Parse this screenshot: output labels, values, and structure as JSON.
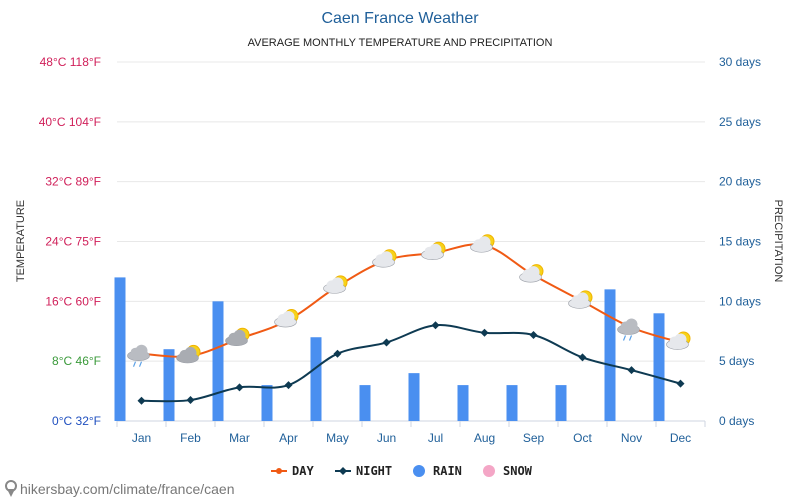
{
  "chart_data": {
    "type": "line",
    "title": "Caen France Weather",
    "subtitle": "AVERAGE MONTHLY TEMPERATURE AND PRECIPITATION",
    "ylabel_left": "TEMPERATURE",
    "ylabel_right": "PRECIPITATION",
    "categories": [
      "Jan",
      "Feb",
      "Mar",
      "Apr",
      "May",
      "Jun",
      "Jul",
      "Aug",
      "Sep",
      "Oct",
      "Nov",
      "Dec"
    ],
    "left_axis": {
      "ylim": [
        0,
        48
      ],
      "ticks": [
        {
          "value": 0,
          "label": "0°C 32°F",
          "color": "#1f4fbf"
        },
        {
          "value": 8,
          "label": "8°C 46°F",
          "color": "#3a9a3a"
        },
        {
          "value": 16,
          "label": "16°C 60°F",
          "color": "#d0205a"
        },
        {
          "value": 24,
          "label": "24°C 75°F",
          "color": "#d0205a"
        },
        {
          "value": 32,
          "label": "32°C 89°F",
          "color": "#d0205a"
        },
        {
          "value": 40,
          "label": "40°C 104°F",
          "color": "#d0205a"
        },
        {
          "value": 48,
          "label": "48°C 118°F",
          "color": "#d0205a"
        }
      ]
    },
    "right_axis": {
      "ylim": [
        0,
        30
      ],
      "ticks": [
        {
          "value": 0,
          "label": "0 days"
        },
        {
          "value": 5,
          "label": "5 days"
        },
        {
          "value": 10,
          "label": "10 days"
        },
        {
          "value": 15,
          "label": "15 days"
        },
        {
          "value": 20,
          "label": "20 days"
        },
        {
          "value": 25,
          "label": "25 days"
        },
        {
          "value": 30,
          "label": "30 days"
        }
      ]
    },
    "series": [
      {
        "name": "DAY",
        "type": "line",
        "axis": "left",
        "color": "#f05a14",
        "values": [
          9.0,
          8.7,
          11.0,
          13.5,
          18.0,
          21.5,
          22.5,
          23.5,
          19.5,
          16.0,
          12.5,
          10.5
        ]
      },
      {
        "name": "NIGHT",
        "type": "line",
        "axis": "left",
        "color": "#0e3a52",
        "values": [
          2.7,
          2.8,
          4.5,
          4.8,
          9.0,
          10.5,
          12.8,
          11.8,
          11.5,
          8.5,
          6.8,
          5.0
        ]
      },
      {
        "name": "RAIN",
        "type": "bar",
        "axis": "right",
        "color": "#4a8ff0",
        "values": [
          12,
          6,
          10,
          3,
          7,
          3,
          4,
          3,
          3,
          3,
          11,
          9
        ]
      },
      {
        "name": "SNOW",
        "type": "bar",
        "axis": "right",
        "color": "#f4a6c6",
        "values": [
          0,
          0,
          0,
          0,
          0,
          0,
          0,
          0,
          0,
          0,
          0,
          0
        ]
      }
    ],
    "weather_icons": [
      "rain-cloud-icon",
      "partly-cloudy-icon",
      "partly-cloudy-icon",
      "partly-sunny-icon",
      "partly-sunny-icon",
      "partly-sunny-icon",
      "partly-sunny-icon",
      "partly-sunny-icon",
      "partly-sunny-icon",
      "partly-sunny-icon",
      "rain-cloud-icon",
      "partly-sunny-icon"
    ],
    "legend": {
      "placement": "bottom",
      "items": [
        "DAY",
        "NIGHT",
        "RAIN",
        "SNOW"
      ]
    },
    "grid": true
  },
  "footer": {
    "source": "hikersbay.com/climate/france/caen"
  }
}
